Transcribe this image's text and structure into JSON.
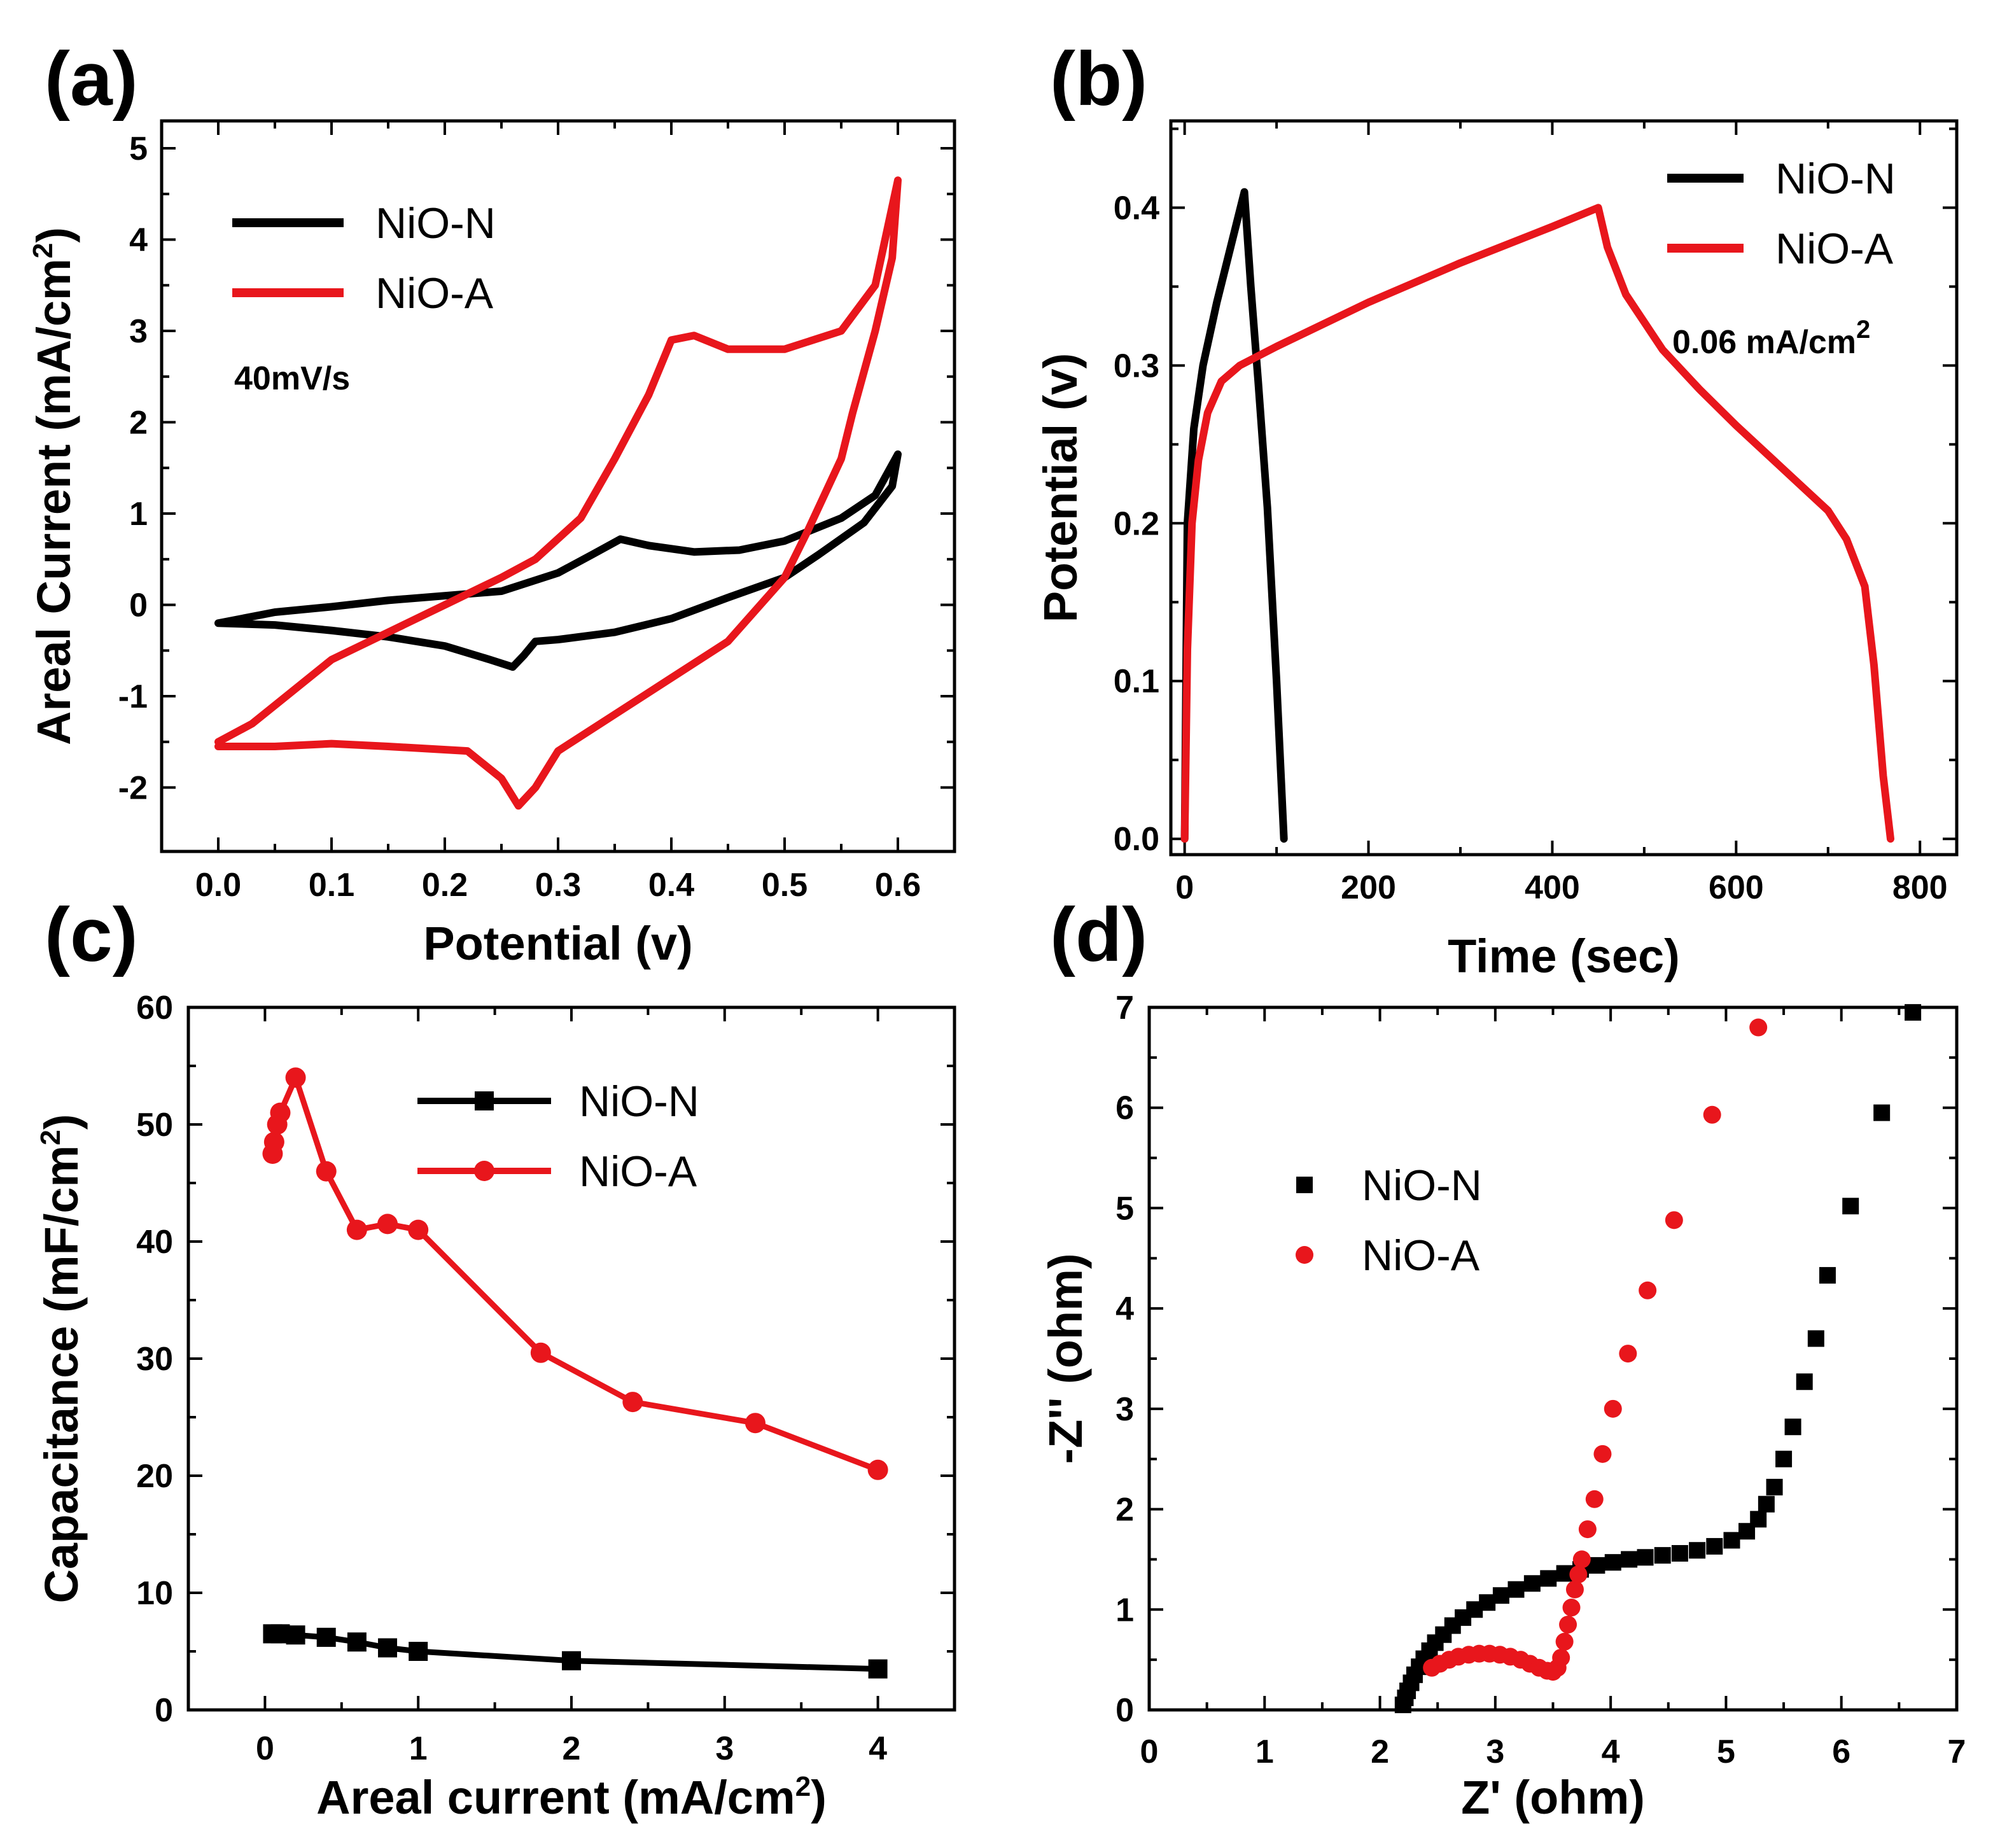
{
  "figure": {
    "colors": {
      "nio_n": "#000000",
      "nio_a": "#e8161c"
    }
  },
  "chart_data": [
    {
      "id": "a",
      "panel_label": "(a)",
      "type": "line",
      "title": "",
      "xlabel": "Potential (v)",
      "ylabel": "Areal Current (mA/cm",
      "ylabel_sup": "2",
      "ylabel_tail": ")",
      "xlim": [
        -0.05,
        0.65
      ],
      "ylim": [
        -2.7,
        5.3
      ],
      "xticks": [
        0.0,
        0.1,
        0.2,
        0.3,
        0.4,
        0.5,
        0.6
      ],
      "xtick_labels": [
        "0.0",
        "0.1",
        "0.2",
        "0.3",
        "0.4",
        "0.5",
        "0.6"
      ],
      "yticks": [
        -2,
        -1,
        0,
        1,
        2,
        3,
        4,
        5
      ],
      "ytick_labels": [
        "-2",
        "-1",
        "0",
        "1",
        "2",
        "3",
        "4",
        "5"
      ],
      "annotation": "40mV/s",
      "legend_position": "top-left",
      "series": [
        {
          "name": "NiO-N",
          "color": "#000000",
          "style": "line",
          "points": [
            [
              0,
              -0.2
            ],
            [
              0.05,
              -0.08
            ],
            [
              0.1,
              -0.02
            ],
            [
              0.15,
              0.05
            ],
            [
              0.2,
              0.1
            ],
            [
              0.25,
              0.15
            ],
            [
              0.3,
              0.35
            ],
            [
              0.33,
              0.55
            ],
            [
              0.355,
              0.72
            ],
            [
              0.38,
              0.65
            ],
            [
              0.42,
              0.58
            ],
            [
              0.46,
              0.6
            ],
            [
              0.5,
              0.7
            ],
            [
              0.55,
              0.95
            ],
            [
              0.58,
              1.2
            ],
            [
              0.6,
              1.65
            ],
            [
              0.595,
              1.3
            ],
            [
              0.57,
              0.9
            ],
            [
              0.53,
              0.55
            ],
            [
              0.5,
              0.3
            ],
            [
              0.45,
              0.08
            ],
            [
              0.4,
              -0.15
            ],
            [
              0.35,
              -0.3
            ],
            [
              0.3,
              -0.38
            ],
            [
              0.28,
              -0.4
            ],
            [
              0.27,
              -0.55
            ],
            [
              0.26,
              -0.68
            ],
            [
              0.24,
              -0.6
            ],
            [
              0.2,
              -0.45
            ],
            [
              0.15,
              -0.35
            ],
            [
              0.1,
              -0.28
            ],
            [
              0.05,
              -0.22
            ],
            [
              0,
              -0.2
            ]
          ]
        },
        {
          "name": "NiO-A",
          "color": "#e8161c",
          "style": "line",
          "points": [
            [
              0,
              -1.5
            ],
            [
              0.03,
              -1.3
            ],
            [
              0.06,
              -1.0
            ],
            [
              0.1,
              -0.6
            ],
            [
              0.15,
              -0.3
            ],
            [
              0.2,
              0.0
            ],
            [
              0.25,
              0.3
            ],
            [
              0.28,
              0.5
            ],
            [
              0.32,
              0.95
            ],
            [
              0.35,
              1.6
            ],
            [
              0.38,
              2.3
            ],
            [
              0.4,
              2.9
            ],
            [
              0.42,
              2.95
            ],
            [
              0.45,
              2.8
            ],
            [
              0.5,
              2.8
            ],
            [
              0.55,
              3.0
            ],
            [
              0.58,
              3.5
            ],
            [
              0.6,
              4.65
            ],
            [
              0.595,
              3.8
            ],
            [
              0.58,
              3.0
            ],
            [
              0.56,
              2.1
            ],
            [
              0.55,
              1.6
            ],
            [
              0.52,
              0.8
            ],
            [
              0.5,
              0.3
            ],
            [
              0.45,
              -0.4
            ],
            [
              0.4,
              -0.8
            ],
            [
              0.35,
              -1.2
            ],
            [
              0.3,
              -1.6
            ],
            [
              0.28,
              -2.0
            ],
            [
              0.265,
              -2.2
            ],
            [
              0.25,
              -1.9
            ],
            [
              0.22,
              -1.6
            ],
            [
              0.15,
              -1.55
            ],
            [
              0.1,
              -1.52
            ],
            [
              0.05,
              -1.55
            ],
            [
              0,
              -1.55
            ]
          ]
        }
      ]
    },
    {
      "id": "b",
      "panel_label": "(b)",
      "type": "line",
      "title": "",
      "xlabel": "Time (sec)",
      "ylabel": "Potential (v)",
      "xlim": [
        -15,
        840
      ],
      "ylim": [
        -0.01,
        0.455
      ],
      "xticks": [
        0,
        200,
        400,
        600,
        800
      ],
      "xtick_labels": [
        "0",
        "200",
        "400",
        "600",
        "800"
      ],
      "yticks": [
        0.0,
        0.1,
        0.2,
        0.3,
        0.4
      ],
      "ytick_labels": [
        "0.0",
        "0.1",
        "0.2",
        "0.3",
        "0.4"
      ],
      "annotation": "0.06 mA/cm",
      "annotation_sup": "2",
      "legend_position": "top-right",
      "series": [
        {
          "name": "NiO-N",
          "color": "#000000",
          "style": "line",
          "points": [
            [
              0,
              0.0
            ],
            [
              3,
              0.2
            ],
            [
              10,
              0.26
            ],
            [
              20,
              0.3
            ],
            [
              35,
              0.34
            ],
            [
              50,
              0.375
            ],
            [
              65,
              0.41
            ],
            [
              72,
              0.35
            ],
            [
              80,
              0.29
            ],
            [
              90,
              0.21
            ],
            [
              100,
              0.1
            ],
            [
              108,
              0.0
            ]
          ]
        },
        {
          "name": "NiO-A",
          "color": "#e8161c",
          "style": "line",
          "points": [
            [
              0,
              0.0
            ],
            [
              3,
              0.12
            ],
            [
              8,
              0.2
            ],
            [
              15,
              0.24
            ],
            [
              25,
              0.27
            ],
            [
              40,
              0.29
            ],
            [
              60,
              0.3
            ],
            [
              100,
              0.312
            ],
            [
              200,
              0.34
            ],
            [
              300,
              0.365
            ],
            [
              400,
              0.388
            ],
            [
              450,
              0.4
            ],
            [
              460,
              0.375
            ],
            [
              480,
              0.345
            ],
            [
              520,
              0.31
            ],
            [
              560,
              0.285
            ],
            [
              600,
              0.262
            ],
            [
              650,
              0.235
            ],
            [
              700,
              0.208
            ],
            [
              720,
              0.19
            ],
            [
              740,
              0.16
            ],
            [
              750,
              0.11
            ],
            [
              760,
              0.04
            ],
            [
              768,
              0.0
            ]
          ]
        }
      ]
    },
    {
      "id": "c",
      "panel_label": "(c)",
      "type": "line",
      "title": "",
      "xlabel": "Areal current (mA/cm",
      "xlabel_sup": "2",
      "xlabel_tail": ")",
      "ylabel": "Capacitance (mF/cm",
      "ylabel_sup": "2",
      "ylabel_tail": ")",
      "xlim": [
        -0.5,
        4.5
      ],
      "ylim": [
        0,
        60
      ],
      "xticks": [
        0,
        1,
        2,
        3,
        4
      ],
      "xtick_labels": [
        "0",
        "1",
        "2",
        "3",
        "4"
      ],
      "yticks": [
        0,
        10,
        20,
        30,
        40,
        50,
        60
      ],
      "ytick_labels": [
        "0",
        "10",
        "20",
        "30",
        "40",
        "50",
        "60"
      ],
      "legend_position": "top-right",
      "series": [
        {
          "name": "NiO-N",
          "color": "#000000",
          "style": "line-square",
          "x": [
            0.05,
            0.1,
            0.2,
            0.4,
            0.6,
            0.8,
            1.0,
            2.0,
            4.0
          ],
          "y": [
            6.5,
            6.5,
            6.4,
            6.2,
            5.8,
            5.3,
            5.0,
            4.2,
            3.5
          ]
        },
        {
          "name": "NiO-A",
          "color": "#e8161c",
          "style": "line-circle",
          "x": [
            0.05,
            0.06,
            0.08,
            0.1,
            0.2,
            0.4,
            0.6,
            0.8,
            1.0,
            1.8,
            2.4,
            3.2,
            4.0
          ],
          "y": [
            47.5,
            48.5,
            50.0,
            51.0,
            54.0,
            46.0,
            41.0,
            41.5,
            41.0,
            30.5,
            26.3,
            24.5,
            20.5
          ]
        }
      ]
    },
    {
      "id": "d",
      "panel_label": "(d)",
      "type": "scatter",
      "title": "",
      "xlabel": "Z'  (ohm)",
      "ylabel": "-Z'' (ohm)",
      "xlim": [
        0,
        7
      ],
      "ylim": [
        0,
        7
      ],
      "xticks": [
        0,
        1,
        2,
        3,
        4,
        5,
        6,
        7
      ],
      "xtick_labels": [
        "0",
        "1",
        "2",
        "3",
        "4",
        "5",
        "6",
        "7"
      ],
      "yticks": [
        0,
        1,
        2,
        3,
        4,
        5,
        6,
        7
      ],
      "ytick_labels": [
        "0",
        "1",
        "2",
        "3",
        "4",
        "5",
        "6",
        "7"
      ],
      "legend_position": "center-left",
      "series": [
        {
          "name": "NiO-N",
          "color": "#000000",
          "style": "square",
          "x": [
            2.2,
            2.22,
            2.24,
            2.27,
            2.3,
            2.34,
            2.38,
            2.43,
            2.48,
            2.55,
            2.63,
            2.72,
            2.82,
            2.93,
            3.05,
            3.18,
            3.32,
            3.46,
            3.6,
            3.74,
            3.88,
            4.02,
            4.16,
            4.3,
            4.45,
            4.6,
            4.75,
            4.9,
            5.05,
            5.18,
            5.28,
            5.35,
            5.42,
            5.5,
            5.58,
            5.68,
            5.78,
            5.88,
            6.08,
            6.35,
            6.62
          ],
          "y": [
            0.05,
            0.12,
            0.19,
            0.27,
            0.35,
            0.43,
            0.51,
            0.59,
            0.67,
            0.75,
            0.84,
            0.92,
            1.0,
            1.07,
            1.14,
            1.2,
            1.26,
            1.31,
            1.36,
            1.4,
            1.44,
            1.47,
            1.5,
            1.52,
            1.54,
            1.56,
            1.59,
            1.63,
            1.69,
            1.78,
            1.9,
            2.05,
            2.22,
            2.5,
            2.82,
            3.27,
            3.7,
            4.33,
            5.02,
            5.95,
            6.95
          ]
        },
        {
          "name": "NiO-A",
          "color": "#e8161c",
          "style": "circle",
          "x": [
            2.45,
            2.52,
            2.6,
            2.68,
            2.77,
            2.86,
            2.95,
            3.04,
            3.13,
            3.22,
            3.3,
            3.38,
            3.45,
            3.5,
            3.54,
            3.57,
            3.6,
            3.63,
            3.66,
            3.69,
            3.72,
            3.75,
            3.8,
            3.86,
            3.93,
            4.02,
            4.15,
            4.32,
            4.55,
            4.88,
            5.28
          ],
          "y": [
            0.42,
            0.46,
            0.5,
            0.53,
            0.55,
            0.56,
            0.56,
            0.55,
            0.53,
            0.5,
            0.46,
            0.42,
            0.39,
            0.38,
            0.42,
            0.52,
            0.68,
            0.85,
            1.02,
            1.2,
            1.35,
            1.5,
            1.8,
            2.1,
            2.55,
            3.0,
            3.55,
            4.18,
            4.88,
            5.93,
            6.8
          ]
        }
      ]
    }
  ]
}
